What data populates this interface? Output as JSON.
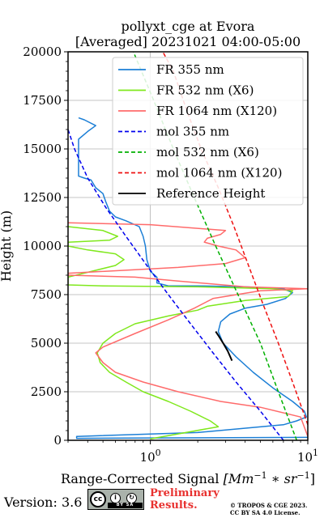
{
  "chart_data": {
    "type": "line",
    "title": "pollyxt_cge at Evora",
    "subtitle": "[Averaged] 20231021 04:00-05:00",
    "xlabel": "Range-Corrected Signal [Mm⁻¹ * sr⁻¹]",
    "xlabel_parts": {
      "prefix": "Range-Corrected Signal ",
      "expr": "[Mm",
      "exp1": "−1",
      "mid": " ∗ sr",
      "exp2": "−1",
      "suffix": "]"
    },
    "ylabel": "Height (m)",
    "xscale": "log",
    "xlim": [
      0.3,
      10
    ],
    "ylim": [
      0,
      20000
    ],
    "x_ticks": [
      {
        "value": 1,
        "base": "10",
        "exp": "0"
      },
      {
        "value": 10,
        "base": "10",
        "exp": "1"
      }
    ],
    "y_ticks": [
      0,
      2500,
      5000,
      7500,
      10000,
      12500,
      15000,
      17500,
      20000
    ],
    "grid": true,
    "legend_position": "top-right",
    "series": [
      {
        "name": "FR 355 nm",
        "color": "#1c7fd6",
        "style": "solid",
        "points": [
          [
            10,
            150
          ],
          [
            1,
            120
          ],
          [
            0.34,
            100
          ],
          [
            0.34,
            200
          ],
          [
            2,
            400
          ],
          [
            7,
            800
          ],
          [
            8.5,
            1000
          ],
          [
            9.8,
            1200
          ],
          [
            9.5,
            1500
          ],
          [
            8,
            2000
          ],
          [
            6,
            2700
          ],
          [
            4.5,
            3500
          ],
          [
            3.5,
            4300
          ],
          [
            2.9,
            5000
          ],
          [
            2.7,
            5600
          ],
          [
            2.8,
            6100
          ],
          [
            3.2,
            6500
          ],
          [
            4,
            6800
          ],
          [
            5.5,
            7000
          ],
          [
            7.2,
            7300
          ],
          [
            8,
            7600
          ],
          [
            7,
            7800
          ],
          [
            4,
            7900
          ],
          [
            2,
            7950
          ],
          [
            1.3,
            7950
          ],
          [
            1.1,
            8100
          ],
          [
            1.1,
            8400
          ],
          [
            1.0,
            8700
          ],
          [
            0.95,
            9300
          ],
          [
            0.93,
            10000
          ],
          [
            0.9,
            10500
          ],
          [
            0.85,
            11000
          ],
          [
            0.7,
            11300
          ],
          [
            0.6,
            11500
          ],
          [
            0.55,
            11800
          ],
          [
            0.52,
            12300
          ],
          [
            0.5,
            12700
          ],
          [
            0.45,
            13000
          ],
          [
            0.42,
            13400
          ],
          [
            0.38,
            13500
          ],
          [
            0.35,
            13600
          ],
          [
            0.35,
            15500
          ],
          [
            0.4,
            15900
          ],
          [
            0.45,
            16200
          ],
          [
            0.38,
            16500
          ],
          [
            0.35,
            16600
          ]
        ]
      },
      {
        "name": "FR 532 nm (X6)",
        "color": "#7fe81c",
        "style": "solid",
        "points": [
          [
            1,
            70
          ],
          [
            2.7,
            700
          ],
          [
            2.4,
            1000
          ],
          [
            1.8,
            1500
          ],
          [
            1.3,
            2000
          ],
          [
            0.9,
            2500
          ],
          [
            0.7,
            3000
          ],
          [
            0.55,
            3500
          ],
          [
            0.48,
            4000
          ],
          [
            0.46,
            4500
          ],
          [
            0.5,
            5000
          ],
          [
            0.6,
            5500
          ],
          [
            0.8,
            6000
          ],
          [
            1.3,
            6400
          ],
          [
            2,
            6700
          ],
          [
            2.3,
            6900
          ],
          [
            4,
            7200
          ],
          [
            7.5,
            7400
          ],
          [
            8,
            7700
          ],
          [
            6,
            7800
          ],
          [
            2,
            7900
          ],
          [
            0.5,
            7950
          ],
          [
            0.3,
            8000
          ],
          [
            0.3,
            8400
          ],
          [
            0.6,
            9000
          ],
          [
            0.68,
            9300
          ],
          [
            0.6,
            9600
          ],
          [
            0.4,
            9800
          ],
          [
            0.3,
            10000
          ],
          [
            0.3,
            10200
          ],
          [
            0.55,
            10300
          ],
          [
            0.62,
            10500
          ],
          [
            0.5,
            10800
          ],
          [
            0.3,
            11000
          ]
        ]
      },
      {
        "name": "FR 1064 nm (X120)",
        "color": "#ff6b6b",
        "style": "solid",
        "points": [
          [
            10,
            200
          ],
          [
            9,
            1200
          ],
          [
            5,
            1700
          ],
          [
            2.8,
            2000
          ],
          [
            1.5,
            2500
          ],
          [
            0.9,
            3000
          ],
          [
            0.6,
            3500
          ],
          [
            0.5,
            4000
          ],
          [
            0.45,
            4500
          ],
          [
            0.5,
            4800
          ],
          [
            0.8,
            5500
          ],
          [
            1.3,
            6200
          ],
          [
            1.9,
            6800
          ],
          [
            2.5,
            7300
          ],
          [
            5,
            7700
          ],
          [
            10,
            7800
          ],
          [
            4,
            7900
          ],
          [
            1.5,
            8200
          ],
          [
            0.8,
            8400
          ],
          [
            0.3,
            8500
          ],
          [
            0.3,
            8600
          ],
          [
            1.5,
            8900
          ],
          [
            3,
            9100
          ],
          [
            4,
            9400
          ],
          [
            3.5,
            9800
          ],
          [
            2.7,
            10000
          ],
          [
            2.2,
            10200
          ],
          [
            2.3,
            10400
          ],
          [
            2.8,
            10600
          ],
          [
            3,
            10800
          ],
          [
            1,
            11100
          ],
          [
            0.3,
            11200
          ]
        ]
      },
      {
        "name": "mol 355 nm",
        "color": "#0000ee",
        "style": "dashed",
        "points": [
          [
            7,
            0
          ],
          [
            5,
            1500
          ],
          [
            3.5,
            3000
          ],
          [
            2.5,
            4500
          ],
          [
            1.8,
            6000
          ],
          [
            1.3,
            7500
          ],
          [
            0.95,
            9000
          ],
          [
            0.7,
            10500
          ],
          [
            0.52,
            12000
          ],
          [
            0.4,
            13500
          ],
          [
            0.33,
            15000
          ],
          [
            0.3,
            16000
          ]
        ]
      },
      {
        "name": "mol 532 nm (X6)",
        "color": "#00b000",
        "style": "dashed",
        "points": [
          [
            8.5,
            0
          ],
          [
            6.5,
            2500
          ],
          [
            5,
            5000
          ],
          [
            3.6,
            7500
          ],
          [
            2.6,
            10000
          ],
          [
            1.9,
            12500
          ],
          [
            1.4,
            15000
          ],
          [
            1.05,
            17500
          ],
          [
            0.78,
            20000
          ]
        ]
      },
      {
        "name": "mol 1064 nm (X120)",
        "color": "#ee1111",
        "style": "dashed",
        "points": [
          [
            10,
            800
          ],
          [
            8,
            3000
          ],
          [
            6.5,
            5000
          ],
          [
            5.2,
            7000
          ],
          [
            4.2,
            9000
          ],
          [
            3.4,
            11000
          ],
          [
            2.7,
            13000
          ],
          [
            2.1,
            15000
          ],
          [
            1.7,
            17000
          ],
          [
            1.4,
            19000
          ],
          [
            1.2,
            20000
          ]
        ]
      },
      {
        "name": "Reference Height",
        "color": "#000000",
        "style": "solid",
        "points": [
          [
            2.6,
            5600
          ],
          [
            2.7,
            5400
          ],
          [
            2.9,
            5000
          ],
          [
            3.1,
            4600
          ],
          [
            3.3,
            4100
          ]
        ]
      }
    ]
  },
  "footer": {
    "version": "Version: 3.6",
    "preliminary_line1": "Preliminary",
    "preliminary_line2": "Results.",
    "copyright_line1": "© TROPOS & CGE 2023.",
    "copyright_line2": "CC BY SA 4.0 License.",
    "license_badge": {
      "cc": "cc",
      "by": "BY",
      "sa": "SA",
      "colors": {
        "badge": "#aab2ab"
      }
    }
  }
}
